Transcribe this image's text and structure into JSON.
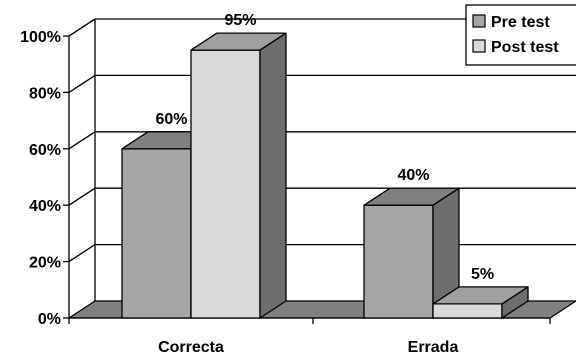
{
  "chart_data": {
    "type": "bar",
    "title": "",
    "xlabel": "",
    "ylabel": "",
    "categories": [
      "Correcta",
      "Errada"
    ],
    "series": [
      {
        "name": "Pre test",
        "values": [
          60,
          40
        ],
        "labels": [
          "60%",
          "40%"
        ],
        "color": "#a6a6a6",
        "side_color": "#6e6e6e",
        "top_color": "#808080"
      },
      {
        "name": "Post test",
        "values": [
          95,
          5
        ],
        "labels": [
          "95%",
          "5%"
        ],
        "color": "#d9d9d9",
        "side_color": "#6e6e6e",
        "top_color": "#a0a0a0"
      }
    ],
    "ylim": [
      0,
      100
    ],
    "yticks": [
      0,
      20,
      40,
      60,
      80,
      100
    ],
    "ytick_labels": [
      "0%",
      "20%",
      "40%",
      "60%",
      "80%",
      "100%"
    ],
    "grid": true,
    "legend_position": "top-right",
    "floor_color": "#808080"
  }
}
